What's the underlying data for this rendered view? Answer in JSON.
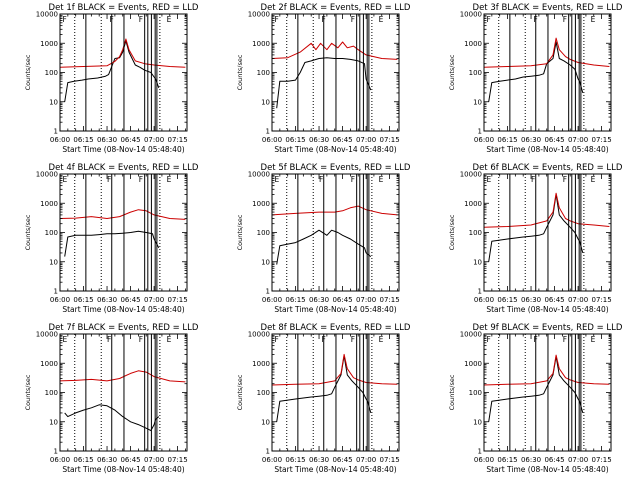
{
  "figure": {
    "background": "#ffffff",
    "event_color": "#000000",
    "lld_color": "#cc0000"
  },
  "chart_data": [
    {
      "type": "line",
      "title": "Det 1f BLACK = Events, RED = LLD",
      "xlabel": "Start Time (08-Nov-14 05:48:40)",
      "ylabel": "Counts/sec",
      "xlim": [
        "06:00",
        "07:21"
      ],
      "ylim": [
        1,
        10000
      ],
      "yscale": "log",
      "xticks": [
        "06:00",
        "06:15",
        "06:30",
        "06:45",
        "07:00",
        "07:15"
      ],
      "yticks": [
        "1",
        "10",
        "100",
        "1000",
        "10000"
      ],
      "segment_labels": [
        "F",
        "F",
        "F",
        "E"
      ],
      "series": [
        {
          "color": "#000000",
          "x": [
            "06:03",
            "06:05",
            "06:09",
            "06:14",
            "06:18",
            "06:24",
            "06:29",
            "06:31",
            "06:35",
            "06:38",
            "06:40",
            "06:42",
            "06:44",
            "06:46",
            "06:48",
            "06:51",
            "06:54",
            "06:58",
            "07:00",
            "07:01",
            "07:03"
          ],
          "y": [
            10,
            45,
            50,
            55,
            60,
            65,
            75,
            85,
            300,
            320,
            500,
            1200,
            500,
            300,
            180,
            150,
            120,
            100,
            70,
            60,
            30
          ]
        },
        {
          "color": "#cc0000",
          "x": [
            "06:00",
            "06:15",
            "06:30",
            "06:35",
            "06:38",
            "06:40",
            "06:42",
            "06:44",
            "06:48",
            "06:54",
            "07:00",
            "07:10",
            "07:20"
          ],
          "y": [
            150,
            160,
            170,
            240,
            350,
            600,
            1400,
            600,
            250,
            200,
            180,
            160,
            150
          ]
        }
      ]
    },
    {
      "type": "line",
      "title": "Det 2f BLACK = Events, RED = LLD",
      "xlabel": "Start Time (08-Nov-14 05:48:40)",
      "ylabel": "Counts/sec",
      "xlim": [
        "06:00",
        "07:21"
      ],
      "ylim": [
        1,
        10000
      ],
      "yscale": "log",
      "xticks": [
        "06:00",
        "06:15",
        "06:30",
        "06:45",
        "07:00",
        "07:15"
      ],
      "yticks": [
        "1",
        "10",
        "100",
        "1000",
        "10000"
      ],
      "segment_labels": [
        "F",
        "F",
        "F",
        "E"
      ],
      "series": [
        {
          "color": "#000000",
          "x": [
            "06:03",
            "06:05",
            "06:10",
            "06:15",
            "06:18",
            "06:21",
            "06:25",
            "06:30",
            "06:35",
            "06:40",
            "06:45",
            "06:50",
            "06:55",
            "06:59",
            "07:00",
            "07:03"
          ],
          "y": [
            6,
            50,
            50,
            55,
            100,
            220,
            250,
            300,
            320,
            300,
            300,
            280,
            250,
            200,
            60,
            25
          ]
        },
        {
          "color": "#cc0000",
          "x": [
            "06:00",
            "06:10",
            "06:18",
            "06:25",
            "06:28",
            "06:31",
            "06:35",
            "06:38",
            "06:42",
            "06:45",
            "06:48",
            "06:52",
            "06:55",
            "07:00",
            "07:10",
            "07:20"
          ],
          "y": [
            300,
            320,
            500,
            1000,
            600,
            1000,
            600,
            1000,
            700,
            1100,
            700,
            800,
            600,
            400,
            300,
            280
          ]
        }
      ]
    },
    {
      "type": "line",
      "title": "Det 3f BLACK = Events, RED = LLD",
      "xlabel": "Start Time (08-Nov-14 05:48:40)",
      "ylabel": "Counts/sec",
      "xlim": [
        "06:00",
        "07:21"
      ],
      "ylim": [
        1,
        10000
      ],
      "yscale": "log",
      "xticks": [
        "06:00",
        "06:15",
        "06:30",
        "06:45",
        "07:00",
        "07:15"
      ],
      "yticks": [
        "1",
        "10",
        "100",
        "1000",
        "10000"
      ],
      "segment_labels": [
        "F",
        "F",
        "F",
        "E"
      ],
      "series": [
        {
          "color": "#000000",
          "x": [
            "06:03",
            "06:05",
            "06:10",
            "06:15",
            "06:20",
            "06:25",
            "06:30",
            "06:35",
            "06:38",
            "06:40",
            "06:44",
            "06:46",
            "06:48",
            "06:51",
            "06:55",
            "06:58",
            "07:00",
            "07:01",
            "07:03"
          ],
          "y": [
            10,
            45,
            50,
            55,
            60,
            70,
            75,
            80,
            90,
            200,
            300,
            1100,
            300,
            250,
            180,
            130,
            60,
            50,
            20
          ]
        },
        {
          "color": "#cc0000",
          "x": [
            "06:00",
            "06:15",
            "06:30",
            "06:40",
            "06:44",
            "06:46",
            "06:48",
            "06:52",
            "06:55",
            "07:00",
            "07:10",
            "07:20"
          ],
          "y": [
            150,
            160,
            170,
            200,
            400,
            1500,
            600,
            350,
            280,
            220,
            180,
            160
          ]
        }
      ]
    },
    {
      "type": "line",
      "title": "Det 4f BLACK = Events, RED = LLD",
      "xlabel": "Start Time (08-Nov-14 05:48:40)",
      "ylabel": "Counts/sec",
      "xlim": [
        "06:00",
        "07:21"
      ],
      "ylim": [
        1,
        10000
      ],
      "yscale": "log",
      "xticks": [
        "06:00",
        "06:15",
        "06:30",
        "06:45",
        "07:00",
        "07:15"
      ],
      "yticks": [
        "1",
        "10",
        "100",
        "1000",
        "10000"
      ],
      "segment_labels": [
        "E",
        "F",
        "F",
        "E"
      ],
      "series": [
        {
          "color": "#000000",
          "x": [
            "06:03",
            "06:05",
            "06:10",
            "06:15",
            "06:20",
            "06:25",
            "06:30",
            "06:35",
            "06:40",
            "06:45",
            "06:50",
            "06:55",
            "06:59",
            "07:00",
            "07:03"
          ],
          "y": [
            15,
            70,
            80,
            80,
            80,
            85,
            90,
            90,
            95,
            100,
            110,
            100,
            90,
            60,
            30
          ]
        },
        {
          "color": "#cc0000",
          "x": [
            "06:00",
            "06:10",
            "06:20",
            "06:30",
            "06:38",
            "06:45",
            "06:50",
            "06:55",
            "07:00",
            "07:10",
            "07:20"
          ],
          "y": [
            300,
            310,
            350,
            300,
            350,
            500,
            600,
            550,
            400,
            300,
            280
          ]
        }
      ]
    },
    {
      "type": "line",
      "title": "Det 5f BLACK = Events, RED = LLD",
      "xlabel": "Start Time (08-Nov-14 05:48:40)",
      "ylabel": "Counts/sec",
      "xlim": [
        "06:00",
        "07:21"
      ],
      "ylim": [
        1,
        10000
      ],
      "yscale": "log",
      "xticks": [
        "06:00",
        "06:15",
        "06:30",
        "06:45",
        "07:00",
        "07:15"
      ],
      "yticks": [
        "1",
        "10",
        "100",
        "1000",
        "10000"
      ],
      "segment_labels": [
        "E",
        "F",
        "F",
        "E"
      ],
      "series": [
        {
          "color": "#000000",
          "x": [
            "06:03",
            "06:05",
            "06:10",
            "06:15",
            "06:20",
            "06:25",
            "06:30",
            "06:35",
            "06:38",
            "06:42",
            "06:45",
            "06:50",
            "06:55",
            "06:59",
            "07:00",
            "07:03"
          ],
          "y": [
            8,
            35,
            40,
            45,
            60,
            80,
            120,
            80,
            120,
            100,
            80,
            60,
            40,
            30,
            20,
            15
          ]
        },
        {
          "color": "#cc0000",
          "x": [
            "06:00",
            "06:15",
            "06:30",
            "06:40",
            "06:45",
            "06:50",
            "06:55",
            "07:00",
            "07:10",
            "07:20"
          ],
          "y": [
            400,
            450,
            500,
            500,
            550,
            700,
            800,
            600,
            450,
            400
          ]
        }
      ]
    },
    {
      "type": "line",
      "title": "Det 6f BLACK = Events, RED = LLD",
      "xlabel": "Start Time (08-Nov-14 05:48:40)",
      "ylabel": "Counts/sec",
      "xlim": [
        "06:00",
        "07:21"
      ],
      "ylim": [
        1,
        10000
      ],
      "yscale": "log",
      "xticks": [
        "06:00",
        "06:15",
        "06:30",
        "06:45",
        "07:00",
        "07:15"
      ],
      "yticks": [
        "1",
        "10",
        "100",
        "1000",
        "10000"
      ],
      "segment_labels": [
        "E",
        "F",
        "F",
        "E"
      ],
      "series": [
        {
          "color": "#000000",
          "x": [
            "06:03",
            "06:05",
            "06:10",
            "06:15",
            "06:20",
            "06:25",
            "06:30",
            "06:35",
            "06:38",
            "06:40",
            "06:44",
            "06:46",
            "06:48",
            "06:51",
            "06:55",
            "06:58",
            "07:00",
            "07:01",
            "07:03"
          ],
          "y": [
            10,
            50,
            55,
            60,
            65,
            70,
            75,
            80,
            90,
            150,
            400,
            2000,
            400,
            250,
            150,
            100,
            60,
            50,
            20
          ]
        },
        {
          "color": "#cc0000",
          "x": [
            "06:00",
            "06:15",
            "06:30",
            "06:40",
            "06:44",
            "06:46",
            "06:48",
            "06:52",
            "06:55",
            "07:00",
            "07:10",
            "07:20"
          ],
          "y": [
            150,
            160,
            180,
            250,
            500,
            2200,
            700,
            300,
            250,
            200,
            180,
            160
          ]
        }
      ]
    },
    {
      "type": "line",
      "title": "Det 7f BLACK = Events, RED = LLD",
      "xlabel": "Start Time (08-Nov-14 05:48:40)",
      "ylabel": "Counts/sec",
      "xlim": [
        "06:00",
        "07:21"
      ],
      "ylim": [
        1,
        10000
      ],
      "yscale": "log",
      "xticks": [
        "06:00",
        "06:15",
        "06:30",
        "06:45",
        "07:00",
        "07:15"
      ],
      "yticks": [
        "1",
        "10",
        "100",
        "1000",
        "10000"
      ],
      "segment_labels": [
        "E",
        "F",
        "F",
        "E"
      ],
      "series": [
        {
          "color": "#000000",
          "x": [
            "06:03",
            "06:05",
            "06:10",
            "06:15",
            "06:20",
            "06:25",
            "06:30",
            "06:35",
            "06:40",
            "06:45",
            "06:50",
            "06:55",
            "06:58",
            "07:00",
            "07:01",
            "07:03"
          ],
          "y": [
            20,
            15,
            20,
            25,
            30,
            38,
            35,
            25,
            15,
            10,
            8,
            6,
            5,
            8,
            12,
            15
          ]
        },
        {
          "color": "#cc0000",
          "x": [
            "06:00",
            "06:10",
            "06:20",
            "06:30",
            "06:38",
            "06:45",
            "06:50",
            "06:55",
            "07:00",
            "07:10",
            "07:20"
          ],
          "y": [
            250,
            260,
            280,
            250,
            300,
            450,
            550,
            500,
            350,
            250,
            230
          ]
        }
      ]
    },
    {
      "type": "line",
      "title": "Det 8f BLACK = Events, RED = LLD",
      "xlabel": "Start Time (08-Nov-14 05:48:40)",
      "ylabel": "Counts/sec",
      "xlim": [
        "06:00",
        "07:21"
      ],
      "ylim": [
        1,
        10000
      ],
      "yscale": "log",
      "xticks": [
        "06:00",
        "06:15",
        "06:30",
        "06:45",
        "07:00",
        "07:15"
      ],
      "yticks": [
        "1",
        "10",
        "100",
        "1000",
        "10000"
      ],
      "segment_labels": [
        "F",
        "F",
        "F",
        "E"
      ],
      "series": [
        {
          "color": "#000000",
          "x": [
            "06:03",
            "06:05",
            "06:10",
            "06:15",
            "06:20",
            "06:25",
            "06:30",
            "06:35",
            "06:38",
            "06:40",
            "06:44",
            "06:46",
            "06:48",
            "06:51",
            "06:55",
            "06:58",
            "07:00",
            "07:01",
            "07:03"
          ],
          "y": [
            10,
            50,
            55,
            60,
            65,
            70,
            75,
            80,
            90,
            150,
            400,
            1800,
            400,
            250,
            150,
            100,
            60,
            50,
            20
          ]
        },
        {
          "color": "#cc0000",
          "x": [
            "06:00",
            "06:15",
            "06:30",
            "06:40",
            "06:44",
            "06:46",
            "06:48",
            "06:52",
            "06:55",
            "07:00",
            "07:10",
            "07:20"
          ],
          "y": [
            180,
            190,
            200,
            250,
            450,
            2000,
            650,
            320,
            270,
            220,
            200,
            190
          ]
        }
      ]
    },
    {
      "type": "line",
      "title": "Det 9f BLACK = Events, RED = LLD",
      "xlabel": "Start Time (08-Nov-14 05:48:40)",
      "ylabel": "Counts/sec",
      "xlim": [
        "06:00",
        "07:21"
      ],
      "ylim": [
        1,
        10000
      ],
      "yscale": "log",
      "xticks": [
        "06:00",
        "06:15",
        "06:30",
        "06:45",
        "07:00",
        "07:15"
      ],
      "yticks": [
        "1",
        "10",
        "100",
        "1000",
        "10000"
      ],
      "segment_labels": [
        "F",
        "F",
        "F",
        "E"
      ],
      "series": [
        {
          "color": "#000000",
          "x": [
            "06:03",
            "06:05",
            "06:10",
            "06:15",
            "06:20",
            "06:25",
            "06:30",
            "06:35",
            "06:38",
            "06:40",
            "06:44",
            "06:46",
            "06:48",
            "06:51",
            "06:55",
            "06:58",
            "07:00",
            "07:01",
            "07:03"
          ],
          "y": [
            10,
            50,
            55,
            60,
            65,
            70,
            75,
            80,
            90,
            150,
            400,
            1700,
            400,
            250,
            150,
            100,
            60,
            50,
            20
          ]
        },
        {
          "color": "#cc0000",
          "x": [
            "06:00",
            "06:15",
            "06:30",
            "06:40",
            "06:44",
            "06:46",
            "06:48",
            "06:52",
            "06:55",
            "07:00",
            "07:10",
            "07:20"
          ],
          "y": [
            180,
            190,
            200,
            250,
            450,
            1900,
            650,
            320,
            270,
            220,
            200,
            190
          ]
        }
      ]
    }
  ]
}
